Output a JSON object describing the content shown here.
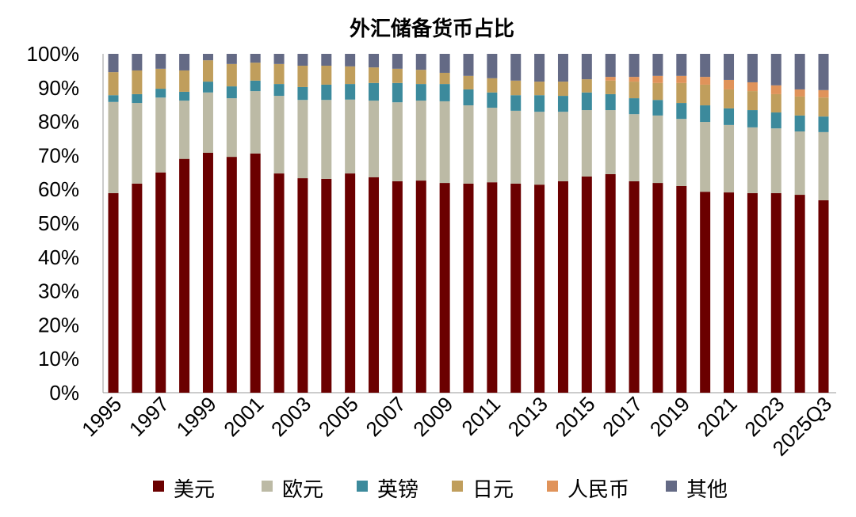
{
  "chart_data": {
    "type": "bar",
    "stacked": true,
    "title": "外汇储备货币占比",
    "xlabel": "",
    "ylabel": "",
    "ylim": [
      0,
      100
    ],
    "yticks": [
      "0%",
      "10%",
      "20%",
      "30%",
      "40%",
      "50%",
      "60%",
      "70%",
      "80%",
      "90%",
      "100%"
    ],
    "grid": false,
    "legend_position": "bottom",
    "categories": [
      "1995",
      "1996",
      "1997",
      "1998",
      "1999",
      "2000",
      "2001",
      "2002",
      "2003",
      "2004",
      "2005",
      "2006",
      "2007",
      "2008",
      "2009",
      "2010",
      "2011",
      "2012",
      "2013",
      "2014",
      "2015",
      "2016",
      "2017",
      "2018",
      "2019",
      "2020",
      "2021",
      "2022",
      "2023",
      "2024",
      "2025Q3"
    ],
    "xtick_labels": [
      "1995",
      "1997",
      "1999",
      "2001",
      "2003",
      "2005",
      "2007",
      "2009",
      "2011",
      "2013",
      "2015",
      "2017",
      "2019",
      "2021",
      "2023",
      "2025Q3"
    ],
    "series": [
      {
        "name": "美元",
        "color": "#6b0000",
        "values": [
          58.9,
          61.7,
          65.0,
          69.0,
          70.8,
          69.6,
          70.6,
          64.7,
          63.3,
          63.1,
          64.7,
          63.6,
          62.4,
          62.6,
          61.9,
          61.7,
          62.1,
          61.7,
          61.4,
          62.4,
          63.8,
          64.5,
          62.4,
          61.9,
          61.0,
          59.3,
          59.1,
          58.9,
          58.9,
          58.4,
          56.8
        ]
      },
      {
        "name": "欧元",
        "color": "#bcbaa5",
        "values": [
          26.9,
          23.8,
          22.1,
          17.2,
          17.8,
          17.3,
          18.4,
          22.9,
          23.1,
          23.3,
          21.8,
          22.6,
          23.3,
          23.6,
          24.1,
          23.1,
          22.0,
          21.5,
          21.5,
          20.5,
          19.6,
          18.9,
          19.8,
          19.9,
          19.8,
          20.6,
          19.9,
          19.4,
          19.1,
          18.7,
          20.1
        ]
      },
      {
        "name": "英镑",
        "color": "#3c8a9c",
        "values": [
          2.0,
          2.6,
          2.6,
          2.6,
          3.2,
          3.5,
          3.1,
          3.5,
          3.8,
          4.5,
          4.6,
          5.2,
          5.7,
          4.9,
          5.1,
          4.7,
          4.5,
          4.6,
          4.9,
          4.7,
          5.2,
          4.7,
          4.7,
          4.6,
          4.7,
          4.9,
          4.9,
          5.1,
          4.7,
          4.7,
          4.6
        ]
      },
      {
        "name": "日元",
        "color": "#c09e5c",
        "values": [
          6.8,
          7.0,
          5.9,
          6.3,
          6.3,
          6.6,
          5.3,
          5.9,
          6.3,
          5.6,
          5.2,
          4.6,
          4.2,
          4.2,
          3.3,
          4.0,
          4.2,
          4.3,
          4.0,
          4.2,
          3.9,
          4.0,
          4.9,
          5.0,
          5.9,
          6.1,
          5.6,
          5.6,
          5.4,
          5.6,
          5.6
        ]
      },
      {
        "name": "人民币",
        "color": "#e0935a",
        "values": [
          0,
          0,
          0,
          0,
          0,
          0,
          0,
          0,
          0,
          0,
          0,
          0,
          0,
          0,
          0,
          0,
          0,
          0,
          0,
          0,
          0,
          1.1,
          1.4,
          2.1,
          2.1,
          2.3,
          2.8,
          2.6,
          2.6,
          2.1,
          2.2
        ]
      },
      {
        "name": "其他",
        "color": "#646a85",
        "values": [
          5.4,
          4.9,
          4.4,
          4.9,
          1.9,
          3.0,
          2.6,
          3.0,
          3.5,
          3.5,
          3.7,
          4.0,
          4.4,
          4.7,
          5.6,
          6.5,
          7.2,
          7.9,
          8.2,
          8.2,
          7.5,
          6.8,
          6.8,
          6.5,
          6.5,
          6.8,
          7.7,
          8.4,
          9.3,
          10.5,
          10.7
        ]
      }
    ]
  }
}
